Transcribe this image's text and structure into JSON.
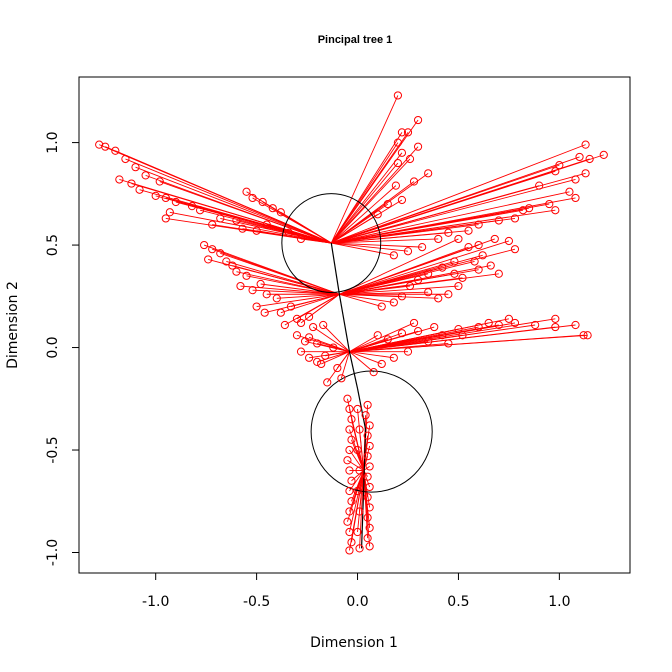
{
  "chart_data": {
    "type": "scatter",
    "title": "Pincipal tree 1",
    "xlabel": "Dimension 1",
    "ylabel": "Dimension 2",
    "xlim": [
      -1.38,
      1.35
    ],
    "ylim": [
      -1.1,
      1.32
    ],
    "xticks": [
      -1.0,
      -0.5,
      0.0,
      0.5,
      1.0
    ],
    "xtick_labels": [
      "-1.0",
      "-0.5",
      "0.0",
      "0.5",
      "1.0"
    ],
    "yticks": [
      -1.0,
      -0.5,
      0.0,
      0.5,
      1.0
    ],
    "ytick_labels": [
      "-1.0",
      "-0.5",
      "0.0",
      "0.5",
      "1.0"
    ],
    "grid": false,
    "colors": {
      "points": "#ff0000",
      "tree": "#000000"
    },
    "tree_nodes": [
      {
        "x": -0.13,
        "y": 0.51
      },
      {
        "x": -0.09,
        "y": 0.26
      },
      {
        "x": -0.04,
        "y": -0.02
      },
      {
        "x": 0.0,
        "y": -0.2
      },
      {
        "x": 0.04,
        "y": -0.4
      },
      {
        "x": 0.03,
        "y": -0.7
      },
      {
        "x": 0.02,
        "y": -0.98
      }
    ],
    "circles": [
      {
        "x": -0.13,
        "y": 0.51,
        "r": 0.245
      },
      {
        "x": 0.07,
        "y": -0.41,
        "r": 0.3
      }
    ],
    "branches": [
      {
        "anchor": [
          -0.13,
          0.51
        ],
        "points": [
          [
            -1.28,
            0.99
          ],
          [
            -1.25,
            0.98
          ],
          [
            -1.2,
            0.96
          ],
          [
            -1.15,
            0.92
          ],
          [
            -1.1,
            0.88
          ],
          [
            -1.05,
            0.84
          ],
          [
            -0.98,
            0.81
          ],
          [
            -1.18,
            0.82
          ],
          [
            -1.12,
            0.8
          ],
          [
            -1.08,
            0.77
          ],
          [
            -1.0,
            0.74
          ],
          [
            -0.95,
            0.73
          ],
          [
            -0.9,
            0.71
          ],
          [
            -0.82,
            0.69
          ],
          [
            -0.78,
            0.67
          ],
          [
            -0.93,
            0.66
          ],
          [
            -0.95,
            0.63
          ],
          [
            -0.72,
            0.6
          ],
          [
            -0.68,
            0.63
          ],
          [
            -0.55,
            0.76
          ],
          [
            -0.52,
            0.73
          ],
          [
            -0.47,
            0.71
          ],
          [
            -0.42,
            0.68
          ],
          [
            -0.38,
            0.66
          ],
          [
            -0.6,
            0.62
          ],
          [
            -0.57,
            0.58
          ],
          [
            -0.5,
            0.57
          ],
          [
            -0.45,
            0.6
          ],
          [
            -0.34,
            0.56
          ],
          [
            -0.28,
            0.53
          ]
        ]
      },
      {
        "anchor": [
          -0.13,
          0.51
        ],
        "points": [
          [
            0.2,
            1.23
          ],
          [
            0.22,
            1.05
          ],
          [
            0.25,
            1.05
          ],
          [
            0.3,
            1.11
          ],
          [
            0.2,
            1.0
          ],
          [
            0.22,
            0.95
          ],
          [
            0.3,
            0.98
          ],
          [
            0.26,
            0.92
          ],
          [
            0.2,
            0.9
          ],
          [
            0.35,
            0.85
          ],
          [
            0.28,
            0.81
          ],
          [
            0.19,
            0.79
          ],
          [
            0.22,
            0.72
          ],
          [
            0.15,
            0.7
          ],
          [
            0.1,
            0.65
          ]
        ]
      },
      {
        "anchor": [
          -0.13,
          0.51
        ],
        "points": [
          [
            1.13,
            0.99
          ],
          [
            1.22,
            0.94
          ],
          [
            1.15,
            0.92
          ],
          [
            1.1,
            0.93
          ],
          [
            1.0,
            0.89
          ],
          [
            0.98,
            0.86
          ],
          [
            1.08,
            0.82
          ],
          [
            1.13,
            0.85
          ],
          [
            0.9,
            0.79
          ],
          [
            1.05,
            0.76
          ],
          [
            1.08,
            0.73
          ],
          [
            0.95,
            0.7
          ],
          [
            0.85,
            0.68
          ],
          [
            0.82,
            0.67
          ],
          [
            0.78,
            0.63
          ],
          [
            0.98,
            0.67
          ],
          [
            0.7,
            0.62
          ],
          [
            0.6,
            0.6
          ],
          [
            0.55,
            0.57
          ],
          [
            0.45,
            0.56
          ],
          [
            0.4,
            0.53
          ],
          [
            0.32,
            0.49
          ],
          [
            0.25,
            0.47
          ],
          [
            0.18,
            0.45
          ]
        ]
      },
      {
        "anchor": [
          -0.09,
          0.26
        ],
        "points": [
          [
            -0.76,
            0.5
          ],
          [
            -0.72,
            0.48
          ],
          [
            -0.68,
            0.46
          ],
          [
            -0.74,
            0.43
          ],
          [
            -0.65,
            0.42
          ],
          [
            -0.62,
            0.4
          ],
          [
            -0.6,
            0.37
          ],
          [
            -0.55,
            0.35
          ],
          [
            -0.58,
            0.3
          ],
          [
            -0.52,
            0.28
          ],
          [
            -0.48,
            0.31
          ],
          [
            -0.45,
            0.26
          ],
          [
            -0.4,
            0.24
          ],
          [
            -0.5,
            0.2
          ],
          [
            -0.46,
            0.17
          ],
          [
            -0.38,
            0.17
          ],
          [
            -0.33,
            0.2
          ],
          [
            -0.3,
            0.14
          ],
          [
            -0.36,
            0.11
          ],
          [
            -0.28,
            0.12
          ],
          [
            -0.24,
            0.15
          ]
        ]
      },
      {
        "anchor": [
          -0.09,
          0.26
        ],
        "points": [
          [
            0.5,
            0.53
          ],
          [
            0.55,
            0.49
          ],
          [
            0.6,
            0.5
          ],
          [
            0.68,
            0.53
          ],
          [
            0.75,
            0.52
          ],
          [
            0.78,
            0.48
          ],
          [
            0.62,
            0.45
          ],
          [
            0.58,
            0.42
          ],
          [
            0.48,
            0.42
          ],
          [
            0.42,
            0.39
          ],
          [
            0.35,
            0.36
          ],
          [
            0.3,
            0.33
          ],
          [
            0.26,
            0.3
          ],
          [
            0.48,
            0.36
          ],
          [
            0.52,
            0.34
          ],
          [
            0.6,
            0.38
          ],
          [
            0.66,
            0.4
          ],
          [
            0.7,
            0.36
          ],
          [
            0.5,
            0.3
          ],
          [
            0.45,
            0.26
          ],
          [
            0.4,
            0.24
          ],
          [
            0.35,
            0.27
          ],
          [
            0.22,
            0.25
          ],
          [
            0.18,
            0.22
          ],
          [
            0.12,
            0.2
          ]
        ]
      },
      {
        "anchor": [
          -0.04,
          -0.02
        ],
        "points": [
          [
            -0.3,
            0.06
          ],
          [
            -0.26,
            0.03
          ],
          [
            -0.24,
            0.05
          ],
          [
            -0.2,
            0.02
          ],
          [
            -0.28,
            -0.02
          ],
          [
            -0.24,
            -0.05
          ],
          [
            -0.2,
            -0.07
          ],
          [
            -0.16,
            -0.04
          ],
          [
            -0.12,
            0.0
          ],
          [
            -0.22,
            0.1
          ],
          [
            -0.17,
            0.11
          ],
          [
            -0.18,
            -0.08
          ],
          [
            -0.1,
            -0.1
          ],
          [
            -0.15,
            -0.17
          ],
          [
            -0.08,
            -0.15
          ]
        ]
      },
      {
        "anchor": [
          -0.04,
          -0.02
        ],
        "points": [
          [
            0.1,
            0.06
          ],
          [
            0.15,
            0.04
          ],
          [
            0.22,
            0.07
          ],
          [
            0.28,
            0.12
          ],
          [
            0.3,
            0.08
          ],
          [
            0.38,
            0.1
          ],
          [
            0.42,
            0.06
          ],
          [
            0.5,
            0.09
          ],
          [
            0.6,
            0.1
          ],
          [
            0.7,
            0.11
          ],
          [
            0.78,
            0.12
          ],
          [
            0.88,
            0.11
          ],
          [
            0.98,
            0.1
          ],
          [
            1.08,
            0.11
          ],
          [
            1.14,
            0.06
          ],
          [
            1.12,
            0.06
          ],
          [
            0.98,
            0.14
          ],
          [
            0.75,
            0.14
          ],
          [
            0.65,
            0.12
          ],
          [
            0.52,
            0.06
          ],
          [
            0.45,
            0.02
          ],
          [
            0.35,
            0.03
          ],
          [
            0.25,
            -0.02
          ],
          [
            0.18,
            -0.05
          ],
          [
            0.12,
            -0.08
          ],
          [
            0.08,
            -0.12
          ]
        ]
      },
      {
        "anchor": [
          0.03,
          -0.6
        ],
        "points": [
          [
            -0.05,
            -0.25
          ],
          [
            -0.04,
            -0.3
          ],
          [
            -0.03,
            -0.35
          ],
          [
            -0.04,
            -0.4
          ],
          [
            -0.03,
            -0.45
          ],
          [
            -0.04,
            -0.5
          ],
          [
            -0.05,
            -0.55
          ],
          [
            -0.04,
            -0.6
          ],
          [
            -0.03,
            -0.65
          ],
          [
            -0.04,
            -0.7
          ],
          [
            -0.03,
            -0.75
          ],
          [
            -0.04,
            -0.8
          ],
          [
            -0.05,
            -0.85
          ],
          [
            -0.04,
            -0.9
          ],
          [
            -0.03,
            -0.95
          ],
          [
            -0.04,
            -0.99
          ],
          [
            0.05,
            -0.28
          ],
          [
            0.04,
            -0.33
          ],
          [
            0.06,
            -0.38
          ],
          [
            0.05,
            -0.43
          ],
          [
            0.06,
            -0.48
          ],
          [
            0.05,
            -0.53
          ],
          [
            0.06,
            -0.58
          ],
          [
            0.05,
            -0.63
          ],
          [
            0.06,
            -0.68
          ],
          [
            0.05,
            -0.73
          ],
          [
            0.06,
            -0.78
          ],
          [
            0.05,
            -0.83
          ],
          [
            0.06,
            -0.88
          ],
          [
            0.05,
            -0.93
          ],
          [
            0.06,
            -0.97
          ],
          [
            0.0,
            -0.3
          ],
          [
            0.01,
            -0.4
          ],
          [
            0.0,
            -0.5
          ],
          [
            0.01,
            -0.6
          ],
          [
            0.0,
            -0.7
          ],
          [
            0.01,
            -0.8
          ],
          [
            0.0,
            -0.9
          ],
          [
            0.01,
            -0.98
          ]
        ]
      }
    ]
  }
}
